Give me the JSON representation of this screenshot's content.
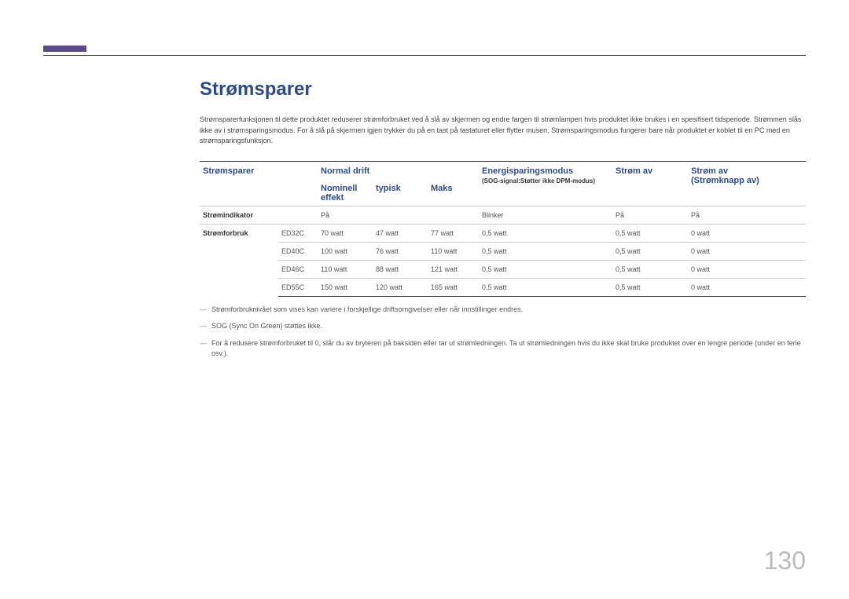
{
  "accent_color": "#5a4a8a",
  "title_color": "#2d4a8a",
  "page_number": "130",
  "title": "Strømsparer",
  "intro": "Strømsparerfunksjonen til dette produktet reduserer strømforbruket ved å slå av skjermen og endre fargen til strømlampen hvis produktet ikke brukes i en spesifisert tidsperiode. Strømmen slås ikke av i strømsparingsmodus. For å slå på skjermen igjen trykker du på en tast på tastaturet eller flytter musen. Strømsparingsmodus fungerer bare når produktet er koblet til en PC med en strømsparingsfunksjon.",
  "headers": {
    "col1": "Strømsparer",
    "col_normal": "Normal drift",
    "col_nominell": "Nominell effekt",
    "col_typisk": "typisk",
    "col_maks": "Maks",
    "col_esm": "Energisparingsmodus",
    "col_esm_note": "(SOG-signal:Støtter ikke DPM-modus)",
    "col_av": "Strøm av",
    "col_av2": "Strøm av",
    "col_av2_sub": "(Strømknapp av)"
  },
  "row_indicator_label": "Strømindikator",
  "row_indicator": {
    "nominell": "På",
    "esm": "Blinker",
    "av": "På",
    "av2": "På"
  },
  "row_forbruk_label": "Strømforbruk",
  "models": [
    {
      "name": "ED32C",
      "nominell": "70 watt",
      "typisk": "47 watt",
      "maks": "77 watt",
      "esm": "0,5 watt",
      "av": "0,5 watt",
      "av2": "0 watt"
    },
    {
      "name": "ED40C",
      "nominell": "100 watt",
      "typisk": "76 watt",
      "maks": "110 watt",
      "esm": "0,5 watt",
      "av": "0,5 watt",
      "av2": "0 watt"
    },
    {
      "name": "ED46C",
      "nominell": "110 watt",
      "typisk": "88 watt",
      "maks": "121 watt",
      "esm": "0,5 watt",
      "av": "0,5 watt",
      "av2": "0 watt"
    },
    {
      "name": "ED55C",
      "nominell": "150 watt",
      "typisk": "120 watt",
      "maks": "165 watt",
      "esm": "0,5 watt",
      "av": "0,5 watt",
      "av2": "0 watt"
    }
  ],
  "footnotes": [
    "Strømforbruknivået som vises kan variere i forskjellige driftsomgivelser eller når innstillinger endres.",
    "SOG (Sync On Green) støttes ikke.",
    "For å redusere strømforbruket til 0, slår du av bryteren på baksiden eller tar ut strømledningen. Ta ut strømledningen hvis du ikke skal bruke produktet over en lengre periode (under en ferie osv.)."
  ]
}
